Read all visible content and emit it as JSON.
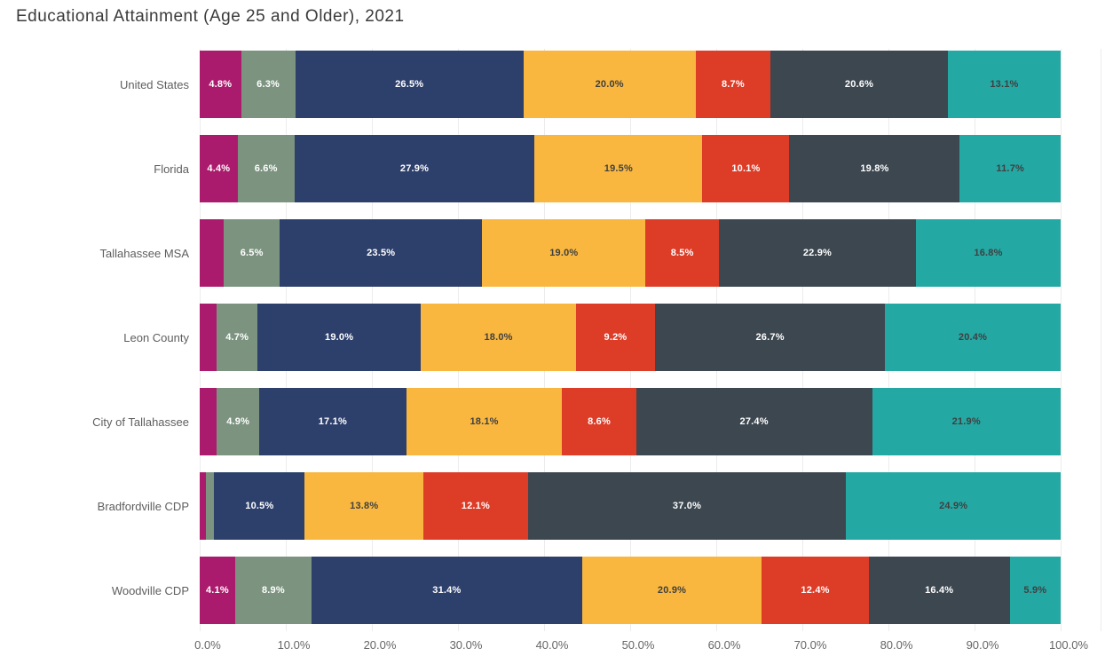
{
  "title": "Educational Attainment (Age 25 and Older), 2021",
  "chart_data": {
    "type": "bar",
    "variant": "horizontal-stacked",
    "title": "Educational Attainment (Age 25 and Older), 2021",
    "categories": [
      "United States",
      "Florida",
      "Tallahassee MSA",
      "Leon County",
      "City of Tallahassee",
      "Bradfordville CDP",
      "Woodville CDP"
    ],
    "series": [
      {
        "name": "magenta-segment",
        "color": "#ab1b6d",
        "label_style": "light",
        "values": [
          4.8,
          4.4,
          2.8,
          2.0,
          2.0,
          0.7,
          4.1
        ],
        "labels": [
          "4.8%",
          "4.4%",
          "",
          "",
          "",
          "",
          "4.1%"
        ]
      },
      {
        "name": "sage-segment",
        "color": "#7b937f",
        "label_style": "light",
        "values": [
          6.3,
          6.6,
          6.5,
          4.7,
          4.9,
          1.0,
          8.9
        ],
        "labels": [
          "6.3%",
          "6.6%",
          "6.5%",
          "4.7%",
          "4.9%",
          "",
          "8.9%"
        ]
      },
      {
        "name": "navy-segment",
        "color": "#2d3f6b",
        "label_style": "light",
        "values": [
          26.5,
          27.9,
          23.5,
          19.0,
          17.1,
          10.5,
          31.4
        ],
        "labels": [
          "26.5%",
          "27.9%",
          "23.5%",
          "19.0%",
          "17.1%",
          "10.5%",
          "31.4%"
        ]
      },
      {
        "name": "amber-segment",
        "color": "#f9b73f",
        "label_style": "dark",
        "values": [
          20.0,
          19.5,
          19.0,
          18.0,
          18.1,
          13.8,
          20.9
        ],
        "labels": [
          "20.0%",
          "19.5%",
          "19.0%",
          "18.0%",
          "18.1%",
          "13.8%",
          "20.9%"
        ]
      },
      {
        "name": "red-segment",
        "color": "#dd3c27",
        "label_style": "light",
        "values": [
          8.7,
          10.1,
          8.5,
          9.2,
          8.6,
          12.1,
          12.4
        ],
        "labels": [
          "8.7%",
          "10.1%",
          "8.5%",
          "9.2%",
          "8.6%",
          "12.1%",
          "12.4%"
        ]
      },
      {
        "name": "slate-segment",
        "color": "#3d4750",
        "label_style": "light",
        "values": [
          20.6,
          19.8,
          22.9,
          26.7,
          27.4,
          37.0,
          16.4
        ],
        "labels": [
          "20.6%",
          "19.8%",
          "22.9%",
          "26.7%",
          "27.4%",
          "37.0%",
          "16.4%"
        ]
      },
      {
        "name": "teal-segment",
        "color": "#24a8a4",
        "label_style": "dark",
        "values": [
          13.1,
          11.7,
          16.8,
          20.4,
          21.9,
          24.9,
          5.9
        ],
        "labels": [
          "13.1%",
          "11.7%",
          "16.8%",
          "20.4%",
          "21.9%",
          "24.9%",
          "5.9%"
        ]
      }
    ],
    "x_ticks": [
      "0.0%",
      "10.0%",
      "20.0%",
      "30.0%",
      "40.0%",
      "50.0%",
      "60.0%",
      "70.0%",
      "80.0%",
      "90.0%",
      "100.0%"
    ],
    "xlim": [
      0,
      100
    ],
    "grid": true,
    "legend": "none"
  }
}
